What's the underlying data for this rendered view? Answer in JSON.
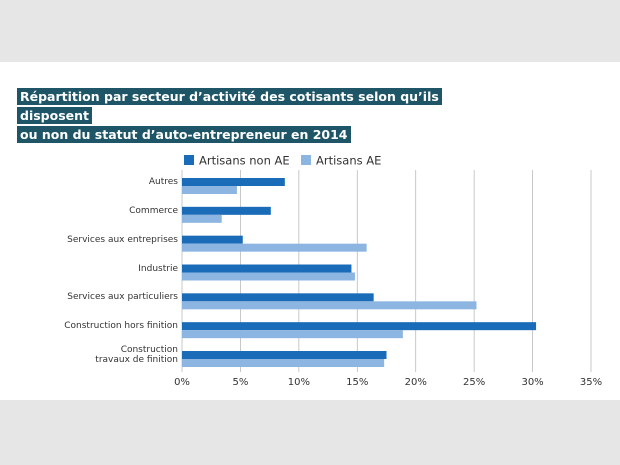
{
  "chart_data": {
    "type": "bar",
    "orientation": "horizontal",
    "title": "Répartition par secteur d’activité des cotisants selon qu’ils disposent\nou non du statut d’auto-entrepreneur en 2014",
    "categories": [
      "Autres",
      "Commerce",
      "Services aux entreprises",
      "Industrie",
      "Services aux particuliers",
      "Construction hors finition",
      "Construction\ntravaux de finition"
    ],
    "series": [
      {
        "name": "Artisans non AE",
        "color": "#1a6cb8",
        "values": [
          8.8,
          7.6,
          5.2,
          14.5,
          16.4,
          30.3,
          17.5
        ]
      },
      {
        "name": "Artisans AE",
        "color": "#8db5e2",
        "values": [
          4.7,
          3.4,
          15.8,
          14.8,
          25.2,
          18.9,
          17.3
        ]
      }
    ],
    "xlim": [
      0,
      35
    ],
    "xticks": [
      {
        "value": 0,
        "label": "0%"
      },
      {
        "value": 5,
        "label": "5%"
      },
      {
        "value": 10,
        "label": "10%"
      },
      {
        "value": 15,
        "label": "15%"
      },
      {
        "value": 20,
        "label": "20%"
      },
      {
        "value": 25,
        "label": "25%"
      },
      {
        "value": 30,
        "label": "30%"
      },
      {
        "value": 35,
        "label": "35%"
      }
    ],
    "grid": true,
    "legend": "top"
  }
}
